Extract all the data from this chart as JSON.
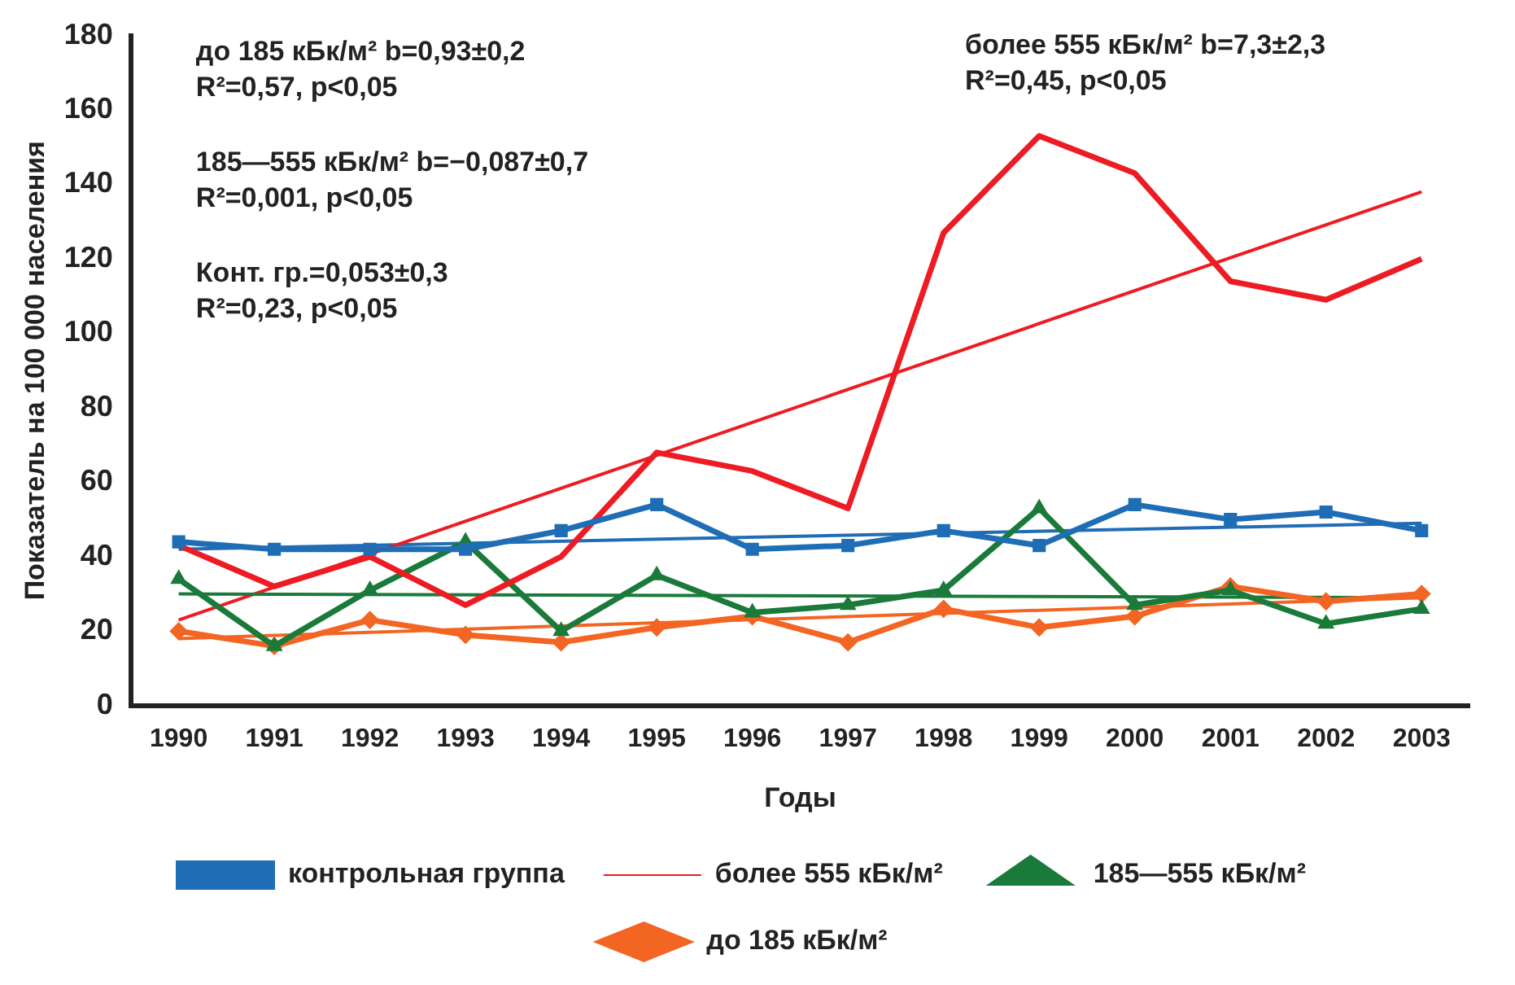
{
  "chart_data": {
    "type": "line",
    "xlabel": "Годы",
    "ylabel": "Показатель на 100 000 населения",
    "categories": [
      "1990",
      "1991",
      "1992",
      "1993",
      "1994",
      "1995",
      "1996",
      "1997",
      "1998",
      "1999",
      "2000",
      "2001",
      "2002",
      "2003"
    ],
    "ylim": [
      0,
      180
    ],
    "yticks": [
      0,
      20,
      40,
      60,
      80,
      100,
      120,
      140,
      160,
      180
    ],
    "grid": false,
    "legend": "bottom",
    "series": [
      {
        "name": "до 185 кБк/м²",
        "color": "#f26522",
        "marker": "diamond",
        "values": [
          20,
          16,
          23,
          19,
          17,
          21,
          24,
          17,
          26,
          21,
          24,
          32,
          28,
          30
        ]
      },
      {
        "name": "185—555 кБк/м²",
        "color": "#1a7a3a",
        "marker": "triangle",
        "values": [
          34,
          16,
          31,
          44,
          20,
          35,
          25,
          27,
          31,
          53,
          27,
          31,
          22,
          26
        ]
      },
      {
        "name": "более 555 кБк/м²",
        "color": "#ed1c24",
        "marker": "none",
        "values": [
          43,
          32,
          40,
          27,
          40,
          68,
          63,
          53,
          127,
          153,
          143,
          114,
          109,
          120
        ]
      },
      {
        "name": "контрольная группа",
        "color": "#1f6db5",
        "marker": "square",
        "values": [
          44,
          42,
          42,
          42,
          47,
          54,
          42,
          43,
          47,
          43,
          54,
          50,
          52,
          47
        ]
      },
      {
        "type": "line",
        "color": "#f26522",
        "marker": "none",
        "values": [
          18,
          null,
          null,
          null,
          null,
          null,
          null,
          null,
          null,
          null,
          null,
          null,
          null,
          29
        ]
      },
      {
        "type": "line",
        "color": "#1a7a3a",
        "marker": "none",
        "values": [
          30,
          null,
          null,
          null,
          null,
          null,
          null,
          null,
          null,
          null,
          null,
          null,
          null,
          29
        ]
      },
      {
        "type": "line",
        "color": "#ed1c24",
        "marker": "none",
        "values": [
          23,
          null,
          null,
          null,
          null,
          null,
          null,
          null,
          null,
          null,
          null,
          null,
          null,
          138
        ]
      },
      {
        "type": "line",
        "color": "#1f6db5",
        "marker": "none",
        "values": [
          42,
          null,
          null,
          null,
          null,
          null,
          null,
          null,
          null,
          null,
          null,
          null,
          null,
          49
        ]
      }
    ],
    "annotations": [
      "до 185 кБк/м² b=0,93±0,2",
      "R²=0,57, p<0,05",
      "185—555 кБк/м² b=−0,087±0,7",
      "R²=0,001, p<0,05",
      "Конт. гр.=0,053±0,3",
      "R²=0,23, p<0,05",
      "более 555 кБк/м² b=7,3±2,3",
      "R²=0,45, p<0,05"
    ]
  }
}
